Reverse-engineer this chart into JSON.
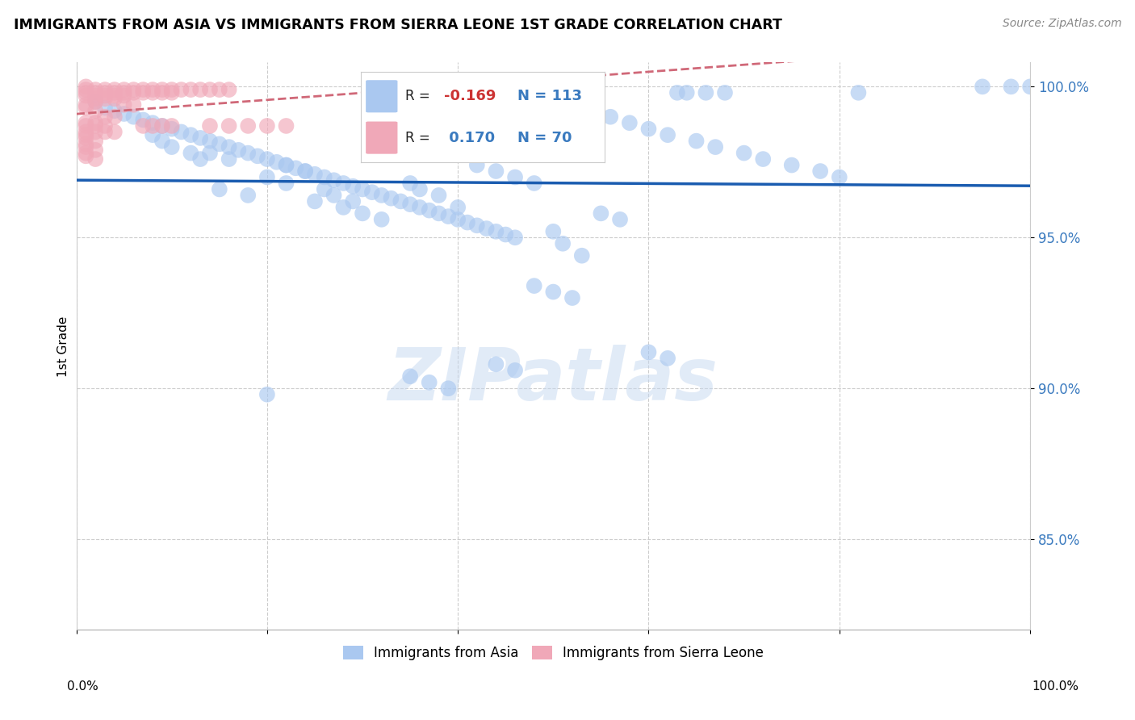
{
  "title": "IMMIGRANTS FROM ASIA VS IMMIGRANTS FROM SIERRA LEONE 1ST GRADE CORRELATION CHART",
  "source": "Source: ZipAtlas.com",
  "ylabel": "1st Grade",
  "xlim": [
    0.0,
    1.0
  ],
  "ylim": [
    0.82,
    1.008
  ],
  "yticks": [
    0.85,
    0.9,
    0.95,
    1.0
  ],
  "ytick_labels": [
    "85.0%",
    "90.0%",
    "95.0%",
    "100.0%"
  ],
  "blue_R": "-0.169",
  "blue_N": "113",
  "pink_R": "0.170",
  "pink_N": "70",
  "blue_color": "#aac8f0",
  "pink_color": "#f0a8b8",
  "blue_line_color": "#1a5cb0",
  "pink_line_color": "#d06878",
  "watermark": "ZIPatlas",
  "legend_label_blue": "Immigrants from Asia",
  "legend_label_pink": "Immigrants from Sierra Leone",
  "blue_scatter_x": [
    0.02,
    0.03,
    0.04,
    0.05,
    0.06,
    0.07,
    0.08,
    0.09,
    0.1,
    0.11,
    0.12,
    0.13,
    0.14,
    0.15,
    0.16,
    0.17,
    0.18,
    0.19,
    0.2,
    0.21,
    0.22,
    0.23,
    0.24,
    0.25,
    0.26,
    0.27,
    0.28,
    0.29,
    0.3,
    0.31,
    0.32,
    0.33,
    0.34,
    0.35,
    0.36,
    0.37,
    0.38,
    0.39,
    0.4,
    0.41,
    0.42,
    0.43,
    0.44,
    0.45,
    0.46,
    0.47,
    0.48,
    0.5,
    0.52,
    0.54,
    0.56,
    0.58,
    0.6,
    0.62,
    0.65,
    0.67,
    0.7,
    0.72,
    0.75,
    0.78,
    0.8,
    0.95,
    0.98,
    1.0,
    0.63,
    0.64,
    0.66,
    0.68,
    0.82,
    0.5,
    0.51,
    0.53,
    0.2,
    0.22,
    0.15,
    0.18,
    0.25,
    0.28,
    0.3,
    0.32,
    0.35,
    0.36,
    0.38,
    0.22,
    0.24,
    0.14,
    0.16,
    0.08,
    0.09,
    0.1,
    0.12,
    0.13,
    0.42,
    0.44,
    0.46,
    0.48,
    0.26,
    0.27,
    0.29,
    0.4,
    0.55,
    0.57,
    0.48,
    0.5,
    0.52,
    0.6,
    0.62,
    0.44,
    0.46,
    0.35,
    0.37,
    0.39,
    0.2
  ],
  "blue_scatter_y": [
    0.995,
    0.993,
    0.992,
    0.991,
    0.99,
    0.989,
    0.988,
    0.987,
    0.986,
    0.985,
    0.984,
    0.983,
    0.982,
    0.981,
    0.98,
    0.979,
    0.978,
    0.977,
    0.976,
    0.975,
    0.974,
    0.973,
    0.972,
    0.971,
    0.97,
    0.969,
    0.968,
    0.967,
    0.966,
    0.965,
    0.964,
    0.963,
    0.962,
    0.961,
    0.96,
    0.959,
    0.958,
    0.957,
    0.956,
    0.955,
    0.954,
    0.953,
    0.952,
    0.951,
    0.95,
    0.998,
    0.997,
    0.996,
    0.994,
    0.992,
    0.99,
    0.988,
    0.986,
    0.984,
    0.982,
    0.98,
    0.978,
    0.976,
    0.974,
    0.972,
    0.97,
    1.0,
    1.0,
    1.0,
    0.998,
    0.998,
    0.998,
    0.998,
    0.998,
    0.952,
    0.948,
    0.944,
    0.97,
    0.968,
    0.966,
    0.964,
    0.962,
    0.96,
    0.958,
    0.956,
    0.968,
    0.966,
    0.964,
    0.974,
    0.972,
    0.978,
    0.976,
    0.984,
    0.982,
    0.98,
    0.978,
    0.976,
    0.974,
    0.972,
    0.97,
    0.968,
    0.966,
    0.964,
    0.962,
    0.96,
    0.958,
    0.956,
    0.934,
    0.932,
    0.93,
    0.912,
    0.91,
    0.908,
    0.906,
    0.904,
    0.902,
    0.9,
    0.898
  ],
  "pink_scatter_x": [
    0.01,
    0.01,
    0.01,
    0.01,
    0.02,
    0.02,
    0.02,
    0.02,
    0.02,
    0.01,
    0.01,
    0.02,
    0.03,
    0.03,
    0.03,
    0.03,
    0.04,
    0.04,
    0.04,
    0.04,
    0.05,
    0.05,
    0.05,
    0.06,
    0.06,
    0.07,
    0.07,
    0.08,
    0.08,
    0.09,
    0.09,
    0.1,
    0.1,
    0.11,
    0.12,
    0.13,
    0.14,
    0.15,
    0.16,
    0.05,
    0.06,
    0.03,
    0.04,
    0.02,
    0.01,
    0.01,
    0.02,
    0.03,
    0.07,
    0.08,
    0.09,
    0.1,
    0.14,
    0.16,
    0.18,
    0.2,
    0.22,
    0.01,
    0.02,
    0.03,
    0.04,
    0.01,
    0.01,
    0.02,
    0.01,
    0.01,
    0.02,
    0.01,
    0.01,
    0.02
  ],
  "pink_scatter_y": [
    1.0,
    0.999,
    0.998,
    0.997,
    0.999,
    0.998,
    0.997,
    0.996,
    0.995,
    0.994,
    0.993,
    0.992,
    0.999,
    0.998,
    0.997,
    0.996,
    0.999,
    0.998,
    0.997,
    0.996,
    0.999,
    0.998,
    0.997,
    0.999,
    0.998,
    0.999,
    0.998,
    0.999,
    0.998,
    0.999,
    0.998,
    0.999,
    0.998,
    0.999,
    0.999,
    0.999,
    0.999,
    0.999,
    0.999,
    0.994,
    0.994,
    0.99,
    0.99,
    0.988,
    0.988,
    0.987,
    0.987,
    0.987,
    0.987,
    0.987,
    0.987,
    0.987,
    0.987,
    0.987,
    0.987,
    0.987,
    0.987,
    0.985,
    0.985,
    0.985,
    0.985,
    0.984,
    0.983,
    0.982,
    0.981,
    0.98,
    0.979,
    0.978,
    0.977,
    0.976
  ]
}
